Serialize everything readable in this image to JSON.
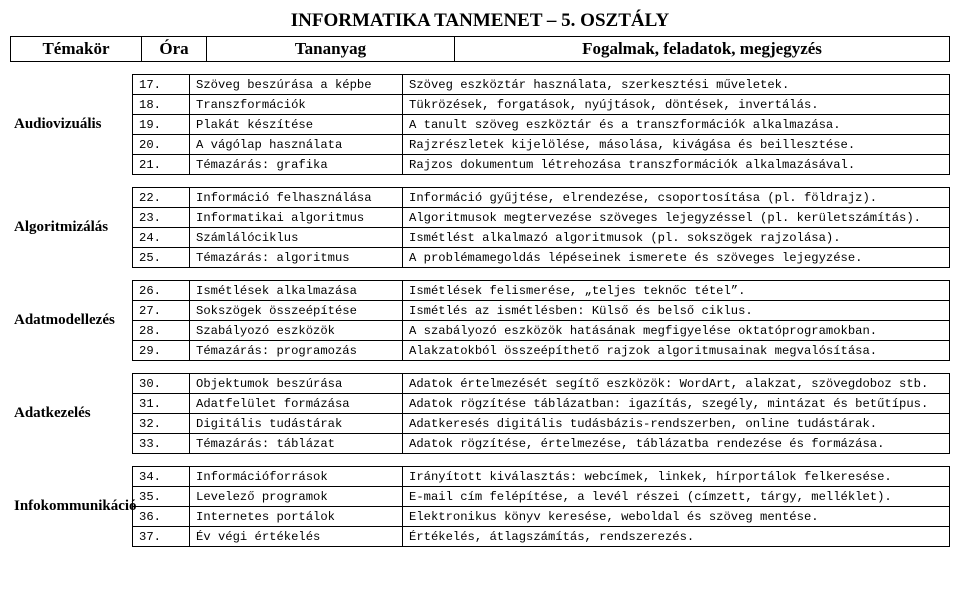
{
  "title": "INFORMATIKA TANMENET – 5. OSZTÁLY",
  "header": {
    "theme": "Témakör",
    "hour": "Óra",
    "topic": "Tananyag",
    "notes": "Fogalmak, feladatok, megjegyzés"
  },
  "sections": [
    {
      "label": "Audiovizuális",
      "rows": [
        {
          "n": "17.",
          "t": "Szöveg beszúrása a képbe",
          "d": "Szöveg eszköztár használata, szerkesztési műveletek."
        },
        {
          "n": "18.",
          "t": "Transzformációk",
          "d": "Tükrözések, forgatások, nyújtások, döntések, invertálás."
        },
        {
          "n": "19.",
          "t": "Plakát készítése",
          "d": "A tanult szöveg eszköztár és a transzformációk alkalmazása."
        },
        {
          "n": "20.",
          "t": "A vágólap használata",
          "d": "Rajzrészletek kijelölése, másolása, kivágása és beillesztése."
        },
        {
          "n": "21.",
          "t": "Témazárás: grafika",
          "d": "Rajzos dokumentum létrehozása transzformációk alkalmazásával."
        }
      ]
    },
    {
      "label": "Algoritmizálás",
      "rows": [
        {
          "n": "22.",
          "t": "Információ felhasználása",
          "d": "Információ gyűjtése, elrendezése, csoportosítása (pl. földrajz)."
        },
        {
          "n": "23.",
          "t": "Informatikai algoritmus",
          "d": "Algoritmusok megtervezése szöveges lejegyzéssel (pl. kerületszámítás)."
        },
        {
          "n": "24.",
          "t": "Számlálóciklus",
          "d": "Ismétlést alkalmazó algoritmusok (pl. sokszögek rajzolása)."
        },
        {
          "n": "25.",
          "t": "Témazárás: algoritmus",
          "d": "A problémamegoldás lépéseinek ismerete és szöveges lejegyzése."
        }
      ]
    },
    {
      "label": "Adatmodellezés",
      "rows": [
        {
          "n": "26.",
          "t": "Ismétlések alkalmazása",
          "d": "Ismétlések felismerése, „teljes teknőc tétel”."
        },
        {
          "n": "27.",
          "t": "Sokszögek összeépítése",
          "d": "Ismétlés az ismétlésben: Külső és belső ciklus."
        },
        {
          "n": "28.",
          "t": "Szabályozó eszközök",
          "d": "A szabályozó eszközök hatásának megfigyelése oktatóprogramokban."
        },
        {
          "n": "29.",
          "t": "Témazárás: programozás",
          "d": "Alakzatokból összeépíthető rajzok algoritmusainak megvalósítása."
        }
      ]
    },
    {
      "label": "Adatkezelés",
      "rows": [
        {
          "n": "30.",
          "t": "Objektumok beszúrása",
          "d": "Adatok értelmezését segítő eszközök: WordArt, alakzat, szövegdoboz stb."
        },
        {
          "n": "31.",
          "t": "Adatfelület formázása",
          "d": "Adatok rögzítése táblázatban: igazítás, szegély, mintázat és betűtípus."
        },
        {
          "n": "32.",
          "t": "Digitális tudástárak",
          "d": "Adatkeresés digitális tudásbázis-rendszerben, online tudástárak."
        },
        {
          "n": "33.",
          "t": "Témazárás: táblázat",
          "d": "Adatok rögzítése, értelmezése, táblázatba rendezése és formázása."
        }
      ]
    },
    {
      "label": "Infokommunikáció",
      "rows": [
        {
          "n": "34.",
          "t": "Információforrások",
          "d": "Irányított kiválasztás: webcímek, linkek, hírportálok felkeresése."
        },
        {
          "n": "35.",
          "t": "Levelező programok",
          "d": "E-mail cím felépítése, a levél részei (címzett, tárgy, melléklet)."
        },
        {
          "n": "36.",
          "t": "Internetes portálok",
          "d": "Elektronikus könyv keresése, weboldal és szöveg mentése."
        },
        {
          "n": "37.",
          "t": "Év végi értékelés",
          "d": "Értékelés, átlagszámítás, rendszerezés."
        }
      ]
    }
  ]
}
